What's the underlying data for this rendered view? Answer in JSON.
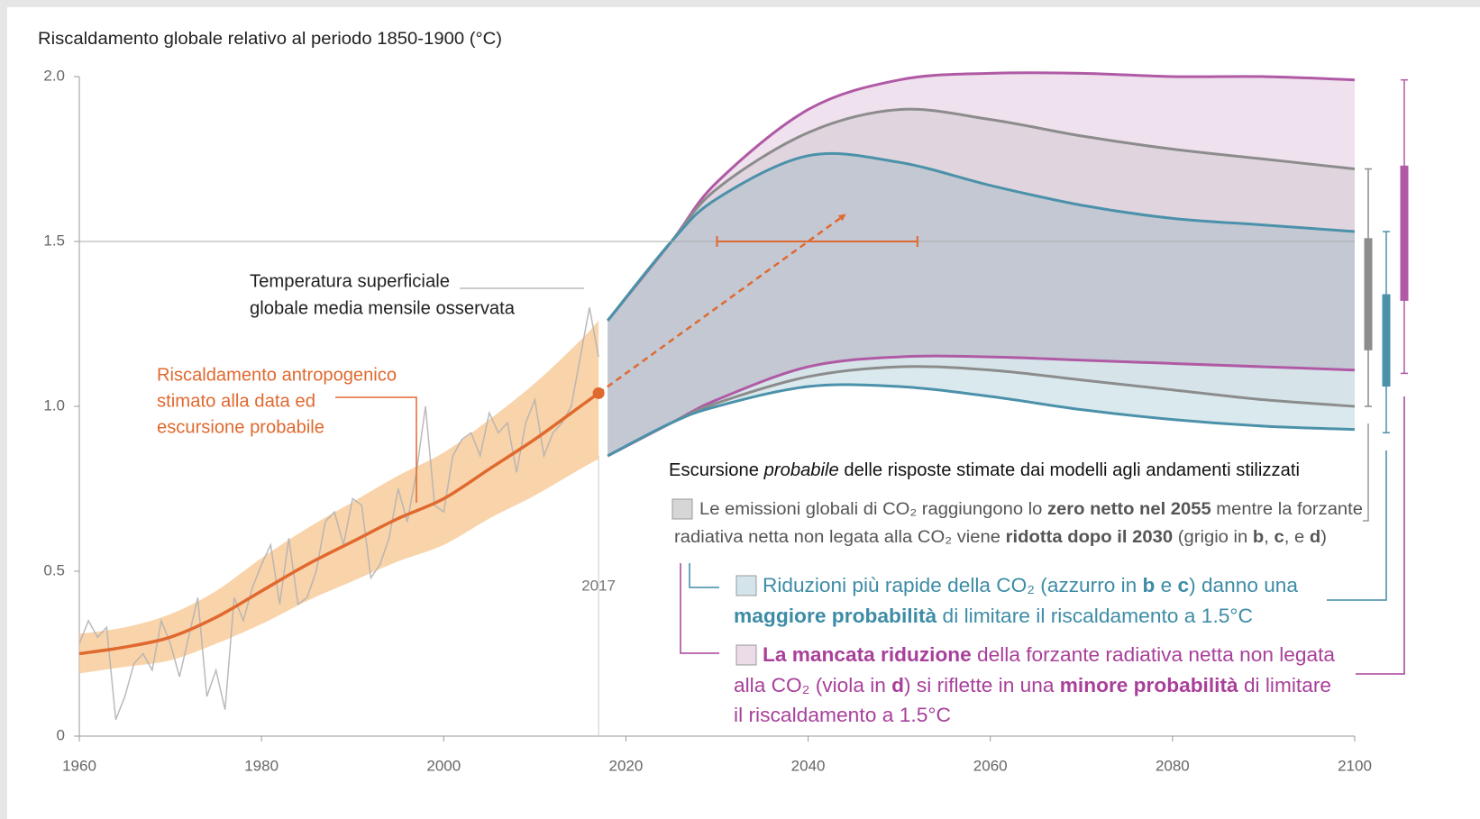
{
  "chart_data": {
    "type": "line",
    "title": "Riscaldamento globale relativo al periodo 1850-1900 (°C)",
    "xlim": [
      1960,
      2100
    ],
    "xticks": [
      1960,
      1980,
      2000,
      2020,
      2040,
      2060,
      2080,
      2100
    ],
    "ylim": [
      0,
      2.0
    ],
    "yticks": [
      0,
      0.5,
      {
        "value": 1.0,
        "label": "1.0"
      },
      1.5,
      {
        "value": 2.0,
        "label": "2.0"
      }
    ],
    "hline": 1.5,
    "vline": 2017,
    "observed": {
      "color": "#b3b3b3",
      "x": [
        1960,
        1961,
        1962,
        1963,
        1964,
        1965,
        1966,
        1967,
        1968,
        1969,
        1970,
        1971,
        1972,
        1973,
        1974,
        1975,
        1976,
        1977,
        1978,
        1979,
        1980,
        1981,
        1982,
        1983,
        1984,
        1985,
        1986,
        1987,
        1988,
        1989,
        1990,
        1991,
        1992,
        1993,
        1994,
        1995,
        1996,
        1997,
        1998,
        1999,
        2000,
        2001,
        2002,
        2003,
        2004,
        2005,
        2006,
        2007,
        2008,
        2009,
        2010,
        2011,
        2012,
        2013,
        2014,
        2015,
        2016,
        2017
      ],
      "values": [
        0.28,
        0.35,
        0.3,
        0.33,
        0.05,
        0.12,
        0.22,
        0.25,
        0.2,
        0.35,
        0.28,
        0.18,
        0.3,
        0.42,
        0.12,
        0.2,
        0.08,
        0.42,
        0.35,
        0.45,
        0.52,
        0.58,
        0.4,
        0.6,
        0.4,
        0.42,
        0.5,
        0.65,
        0.68,
        0.58,
        0.72,
        0.7,
        0.48,
        0.52,
        0.6,
        0.75,
        0.65,
        0.8,
        1.0,
        0.7,
        0.68,
        0.85,
        0.9,
        0.92,
        0.85,
        0.98,
        0.92,
        0.95,
        0.8,
        0.95,
        1.02,
        0.85,
        0.92,
        0.95,
        1.0,
        1.15,
        1.3,
        1.15
      ]
    },
    "anthropogenic": {
      "color": "#e0692f",
      "band_color": "#f8c893",
      "x": [
        1960,
        1965,
        1970,
        1975,
        1980,
        1985,
        1990,
        1995,
        2000,
        2005,
        2010,
        2015,
        2017
      ],
      "values": [
        0.25,
        0.27,
        0.3,
        0.36,
        0.44,
        0.52,
        0.59,
        0.66,
        0.72,
        0.81,
        0.9,
        1.0,
        1.04
      ],
      "band_lower": [
        0.19,
        0.21,
        0.23,
        0.28,
        0.34,
        0.41,
        0.47,
        0.53,
        0.58,
        0.66,
        0.73,
        0.81,
        0.84
      ],
      "band_upper": [
        0.31,
        0.33,
        0.37,
        0.44,
        0.54,
        0.63,
        0.71,
        0.79,
        0.86,
        0.96,
        1.07,
        1.2,
        1.26
      ]
    },
    "projection_x": [
      2018,
      2025,
      2030,
      2040,
      2050,
      2060,
      2070,
      2080,
      2090,
      2100
    ],
    "bands": [
      {
        "color": "#b05aa5",
        "fill": "#ecdcea",
        "upper": [
          1.26,
          1.5,
          1.68,
          1.9,
          1.99,
          2.01,
          2.01,
          2.0,
          2.0,
          1.99
        ],
        "lower": [
          0.85,
          0.95,
          1.02,
          1.12,
          1.15,
          1.15,
          1.14,
          1.13,
          1.12,
          1.11
        ]
      },
      {
        "color": "#8c8c8c",
        "fill": "#ddd2da",
        "upper": [
          1.26,
          1.5,
          1.66,
          1.83,
          1.9,
          1.87,
          1.82,
          1.78,
          1.75,
          1.72
        ],
        "lower": [
          0.85,
          0.95,
          1.01,
          1.09,
          1.12,
          1.11,
          1.08,
          1.05,
          1.02,
          1.0
        ]
      },
      {
        "color": "#4b91aa",
        "fill": "#d3e5ea",
        "upper": [
          1.26,
          1.5,
          1.63,
          1.76,
          1.74,
          1.67,
          1.61,
          1.57,
          1.55,
          1.53
        ],
        "lower": [
          0.85,
          0.95,
          1.0,
          1.06,
          1.06,
          1.03,
          0.99,
          0.96,
          0.94,
          0.93
        ]
      }
    ],
    "core_fill": "#c3c8d3",
    "range": {
      "color": "#e0692f",
      "x": [
        2030,
        2052
      ],
      "y": 1.5
    },
    "arrow": {
      "color": "#e0692f",
      "x": [
        2017,
        2044
      ],
      "y": [
        1.04,
        1.58
      ]
    },
    "bars": [
      {
        "color": "#8c8c8c",
        "whisker": [
          1.0,
          1.72
        ],
        "box": [
          1.17,
          1.51
        ]
      },
      {
        "color": "#4b91aa",
        "whisker": [
          0.92,
          1.53
        ],
        "box": [
          1.06,
          1.34
        ]
      },
      {
        "color": "#b05aa5",
        "whisker": [
          1.1,
          1.99
        ],
        "box": [
          1.32,
          1.73
        ]
      }
    ],
    "observed_label": [
      "Temperatura superficiale",
      "globale media mensile osservata"
    ],
    "anthropogenic_label": [
      "Riscaldamento antropogenico",
      "stimato alla data ed",
      "escursione probabile"
    ],
    "legend": {
      "title": [
        {
          "t": "Escursione "
        },
        {
          "t": "probabile",
          "i": true
        },
        {
          "t": " delle risposte stimate dai modelli agli andamenti stilizzati"
        }
      ],
      "items": [
        {
          "color": "#555555",
          "box": "#d6d6d6",
          "lines": [
            [
              {
                "t": "Le emissioni globali di CO₂ raggiungono lo "
              },
              {
                "t": "zero netto nel 2055",
                "b": true
              },
              {
                "t": " mentre la forzante"
              }
            ],
            [
              {
                "t": "radiativa netta non legata alla CO₂ viene "
              },
              {
                "t": "ridotta dopo il 2030",
                "b": true
              },
              {
                "t": " (grigio in "
              },
              {
                "t": "b",
                "b": true
              },
              {
                "t": ", "
              },
              {
                "t": "c",
                "b": true
              },
              {
                "t": ", e "
              },
              {
                "t": "d",
                "b": true
              },
              {
                "t": ")"
              }
            ]
          ]
        },
        {
          "color": "#3d8ca6",
          "box": "#d3e5ea",
          "lines": [
            [
              {
                "t": "Riduzioni più rapide della CO₂ (azzurro in "
              },
              {
                "t": "b",
                "b": true
              },
              {
                "t": " e "
              },
              {
                "t": "c",
                "b": true
              },
              {
                "t": ") danno una"
              }
            ],
            [
              {
                "t": "maggiore probabilità",
                "b": true
              },
              {
                "t": " di limitare il riscaldamento a 1.5°C"
              }
            ]
          ]
        },
        {
          "color": "#a8409a",
          "box": "#ecdcea",
          "lines": [
            [
              {
                "t": "La mancata riduzione",
                "b": true
              },
              {
                "t": " della forzante radiativa netta non legata"
              }
            ],
            [
              {
                "t": "alla CO₂ (viola in "
              },
              {
                "t": "d",
                "b": true
              },
              {
                "t": ") si riflette in una "
              },
              {
                "t": "minore probabilità",
                "b": true
              },
              {
                "t": " di limitare"
              }
            ],
            [
              {
                "t": "il riscaldamento a 1.5°C"
              }
            ]
          ]
        }
      ]
    }
  }
}
